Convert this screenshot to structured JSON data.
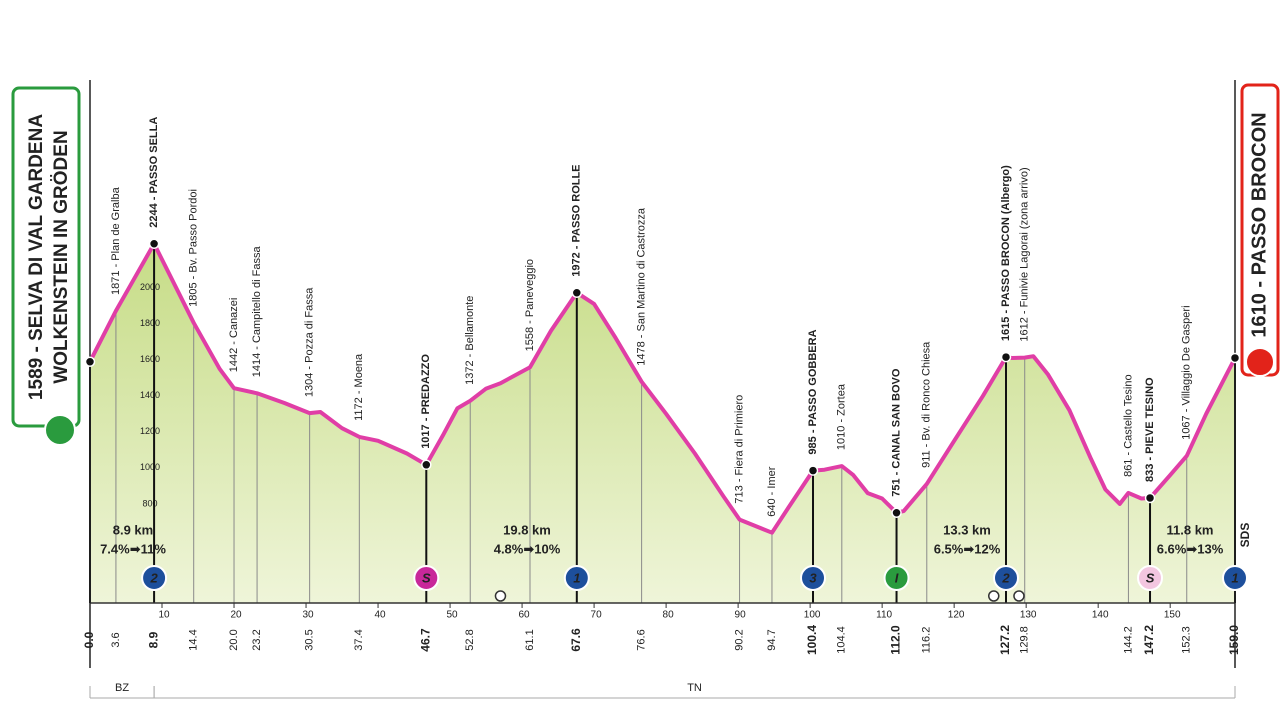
{
  "chart_data": {
    "type": "area",
    "start": {
      "lines": [
        "1589 - SELVA DI VAL GARDENA",
        "WOLKENSTEIN IN GRÖDEN"
      ],
      "color": "#2a9b3e"
    },
    "finish": {
      "label": "1610 - PASSO BROCON",
      "color": "#e2231a"
    },
    "sds": "SDS",
    "xlim": [
      0,
      159
    ],
    "ylim": [
      250,
      3125
    ],
    "xticks": [
      10,
      20,
      30,
      40,
      50,
      60,
      70,
      80,
      90,
      100,
      110,
      120,
      130,
      140,
      150
    ],
    "yticks": [
      800,
      1000,
      1200,
      1400,
      1600,
      1800,
      2000
    ],
    "profile": {
      "color": "#e03ea6",
      "fill": [
        "#c6dc86",
        "#eff5d9"
      ],
      "x": [
        0,
        3.6,
        8.9,
        14.4,
        18,
        20,
        23.2,
        27,
        30.5,
        32,
        35,
        37.4,
        40,
        44,
        46.7,
        49,
        51,
        52.8,
        55,
        57,
        61.1,
        64,
        67.6,
        70,
        73,
        76.6,
        80,
        84,
        88,
        90.2,
        94.7,
        97,
        100.4,
        102,
        104.4,
        106,
        108,
        110,
        112,
        113,
        116.2,
        120,
        124,
        127.2,
        128,
        129.8,
        131,
        133,
        136,
        139,
        141,
        143,
        144.2,
        146,
        147.2,
        150,
        152.3,
        155,
        159
      ],
      "values": [
        1589,
        1871,
        2244,
        1805,
        1550,
        1442,
        1414,
        1360,
        1304,
        1310,
        1220,
        1172,
        1150,
        1080,
        1017,
        1180,
        1330,
        1372,
        1440,
        1470,
        1558,
        1760,
        1972,
        1910,
        1720,
        1478,
        1300,
        1080,
        840,
        713,
        640,
        780,
        985,
        990,
        1010,
        960,
        860,
        830,
        751,
        760,
        911,
        1150,
        1400,
        1615,
        1610,
        1612,
        1620,
        1520,
        1320,
        1050,
        880,
        800,
        861,
        830,
        833,
        960,
        1067,
        1300,
        1610
      ]
    },
    "waypoints": [
      {
        "km": {
          "value": 0,
          "label": "0.0"
        },
        "elevation": 1589,
        "bold": true
      },
      {
        "km": 3.6,
        "elevation": 1871,
        "label": "1871 - Plan de Gralba"
      },
      {
        "km": 8.9,
        "elevation": 2244,
        "label": "2244 - PASSO SELLA",
        "bold": true,
        "category": "2",
        "category_color": "#1d4f9c"
      },
      {
        "km": 14.4,
        "elevation": 1805,
        "label": "1805 - Bv. Passo Pordoi"
      },
      {
        "km": {
          "value": 20,
          "label": "20.0"
        },
        "elevation": 1442,
        "label": "1442 - Canazei"
      },
      {
        "km": 23.2,
        "elevation": 1414,
        "label": "1414 - Campitello di Fassa"
      },
      {
        "km": 30.5,
        "elevation": 1304,
        "label": "1304 - Pozza di Fassa"
      },
      {
        "km": 37.4,
        "elevation": 1172,
        "label": "1172 - Moena"
      },
      {
        "km": 46.7,
        "elevation": 1017,
        "label": "1017 - PREDAZZO",
        "bold": true,
        "category": "S",
        "category_color": "#c8289a"
      },
      {
        "km": 52.8,
        "elevation": 1372,
        "label": "1372 - Bellamonte"
      },
      {
        "km": 61.1,
        "elevation": 1558,
        "label": "1558 - Paneveggio"
      },
      {
        "km": 67.6,
        "elevation": 1972,
        "label": "1972 - PASSO ROLLE",
        "bold": true,
        "category": "1",
        "category_color": "#1d4f9c"
      },
      {
        "km": 76.6,
        "elevation": 1478,
        "label": "1478 - San Martino di Castrozza"
      },
      {
        "km": 90.2,
        "elevation": 713,
        "label": "713 - Fiera di Primiero"
      },
      {
        "km": 94.7,
        "elevation": 640,
        "label": "640 - Imer"
      },
      {
        "km": 100.4,
        "elevation": 985,
        "label": "985 - PASSO GOBBERA",
        "bold": true,
        "category": "3",
        "category_color": "#1d4f9c"
      },
      {
        "km": 104.4,
        "elevation": 1010,
        "label": "1010 - Zortea"
      },
      {
        "km": {
          "value": 112,
          "label": "112.0"
        },
        "elevation": 751,
        "label": "751 - CANAL SAN BOVO",
        "bold": true,
        "category": "I",
        "category_color": "#2a9b3e"
      },
      {
        "km": 116.2,
        "elevation": 911,
        "label": "911 - Bv. di Ronco Chiesa"
      },
      {
        "km": 127.2,
        "elevation": 1615,
        "label": "1615 - PASSO BROCON (Albergo)",
        "bold": true,
        "category": "2",
        "category_color": "#1d4f9c"
      },
      {
        "km": 129.8,
        "elevation": 1612,
        "label": "1612 - Funivie Lagorai (zona arrivo)"
      },
      {
        "km": 144.2,
        "elevation": 861,
        "label": "861 - Castello Tesino"
      },
      {
        "km": 147.2,
        "elevation": 833,
        "label": "833 - PIEVE TESINO",
        "bold": true,
        "category": "S",
        "category_color": "#f3c6e0"
      },
      {
        "km": 152.3,
        "elevation": 1067,
        "label": "1067 - Villaggio De Gasperi"
      },
      {
        "km": {
          "value": 159,
          "label": "159.0"
        },
        "elevation": 1610,
        "bold": true,
        "category": "1",
        "category_color": "#1d4f9c"
      }
    ],
    "climbs": [
      {
        "length": "8.9 km",
        "gradient": "7.4%➡11%"
      },
      {
        "length": "19.8 km",
        "gradient": "4.8%➡10%"
      },
      {
        "length": "13.3 km",
        "gradient": "6.5%➡12%"
      },
      {
        "length": "11.8 km",
        "gradient": "6.6%➡13%"
      }
    ],
    "regions": [
      {
        "label": "BZ",
        "from": 0,
        "to": 8.9
      },
      {
        "label": "TN",
        "from": 8.9,
        "to": 159
      }
    ]
  }
}
